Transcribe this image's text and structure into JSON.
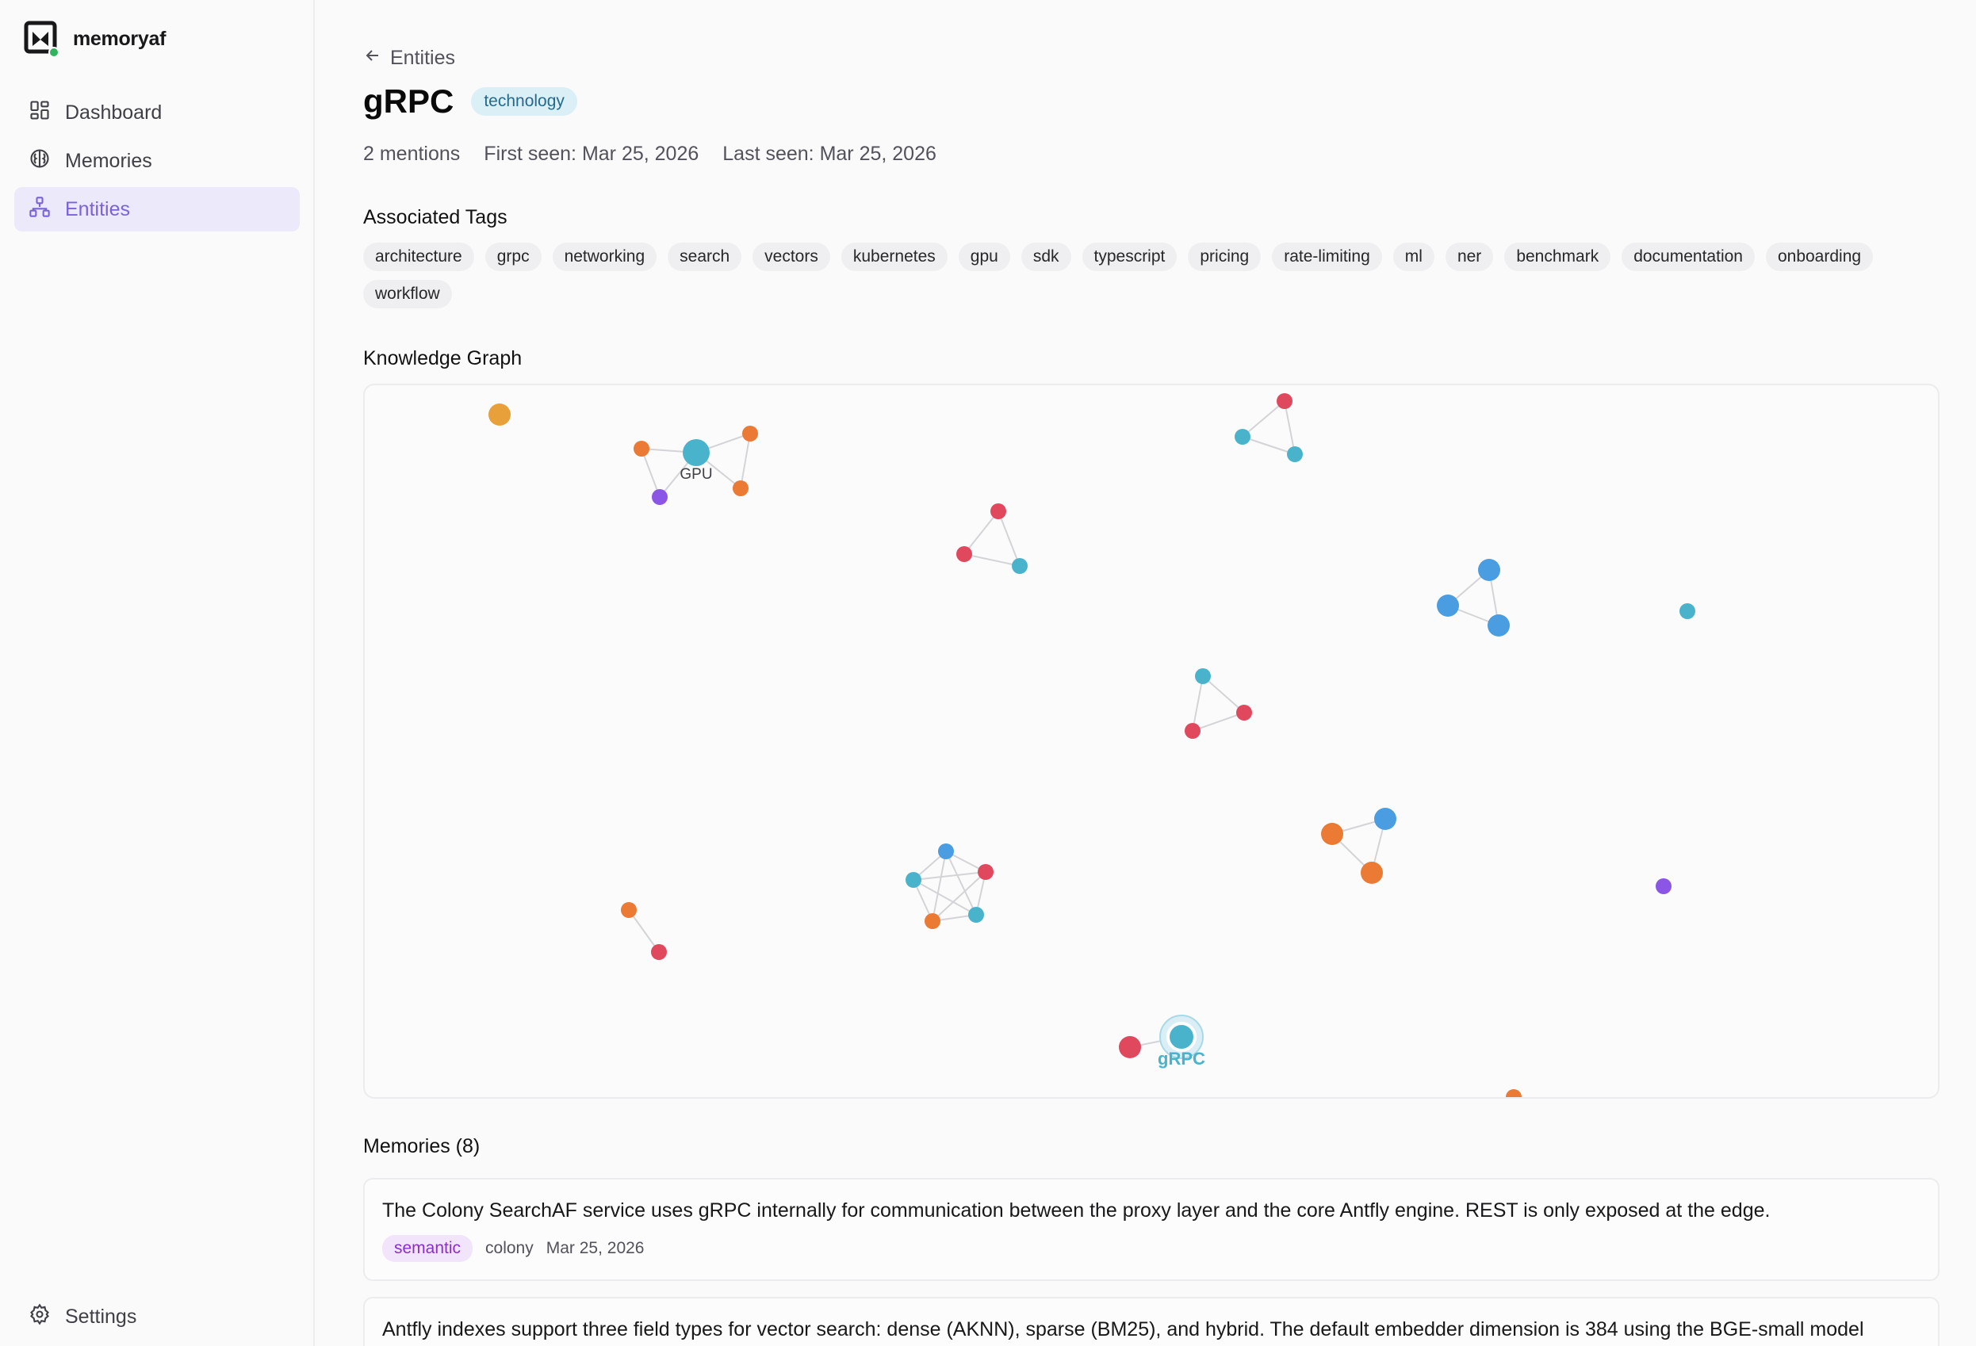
{
  "app": {
    "name": "memoryaf"
  },
  "sidebar": {
    "items": [
      {
        "label": "Dashboard",
        "icon": "dashboard-icon"
      },
      {
        "label": "Memories",
        "icon": "brain-icon"
      },
      {
        "label": "Entities",
        "icon": "network-icon",
        "active": true
      }
    ],
    "settings_label": "Settings"
  },
  "header": {
    "back_label": "Entities",
    "title": "gRPC",
    "type_badge": "technology",
    "mentions": "2 mentions",
    "first_seen": "First seen: Mar 25, 2026",
    "last_seen": "Last seen: Mar 25, 2026"
  },
  "tags_section": {
    "title": "Associated Tags",
    "tags": [
      "architecture",
      "grpc",
      "networking",
      "search",
      "vectors",
      "kubernetes",
      "gpu",
      "sdk",
      "typescript",
      "pricing",
      "rate-limiting",
      "ml",
      "ner",
      "benchmark",
      "documentation",
      "onboarding",
      "workflow"
    ]
  },
  "graph": {
    "title": "Knowledge Graph",
    "colors": {
      "orange": "#ea7a34",
      "amber": "#e8a03a",
      "teal": "#4ab3cc",
      "blue": "#4a9de0",
      "red": "#e0485e",
      "purple": "#8b55e6",
      "edge": "#d4d4d8"
    },
    "labels": {
      "gpu": "GPU",
      "grpc": "gRPC"
    }
  },
  "memories": {
    "title": "Memories (8)",
    "items": [
      {
        "text": "The Colony SearchAF service uses gRPC internally for communication between the proxy layer and the core Antfly engine. REST is only exposed at the edge.",
        "type": "semantic",
        "source": "colony",
        "date": "Mar 25, 2026"
      },
      {
        "text": "Antfly indexes support three field types for vector search: dense (AKNN), sparse (BM25), and hybrid. The default embedder dimension is 384 using the BGE-small model"
      }
    ]
  }
}
